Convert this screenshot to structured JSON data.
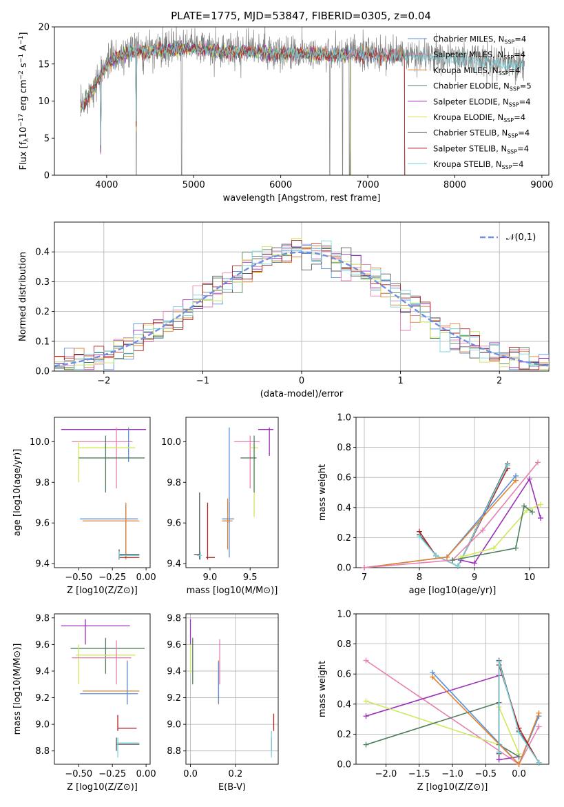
{
  "colors": {
    "chabrier_miles": "#5b8fd9",
    "salpeter_miles": "#e77fb0",
    "kroupa_miles": "#e1822f",
    "chabrier_elodie": "#4f7f5f",
    "salpeter_elodie": "#9b30b8",
    "kroupa_elodie": "#cfe85a",
    "chabrier_stelib": "#555555",
    "salpeter_stelib": "#b22222",
    "kroupa_stelib": "#79d5de",
    "normal": "#6f8fe0",
    "grid": "#b0b0b0"
  },
  "chart_data": [
    {
      "id": "spectrum",
      "type": "line",
      "title": "PLATE=1775, MJD=53847, FIBERID=0305, z=0.04",
      "xlabel": "wavelength [Angstrom, rest frame]",
      "ylabel": "Flux [f_λ10^-17 erg cm^-2 s^-1 A^-1]",
      "ylabel_parts": {
        "a": "Flux [",
        "b": "f",
        "c": "λ",
        "d": "10",
        "e": "−17",
        "f": " erg cm",
        "g": "−2",
        "h": " s",
        "i": "−1",
        "j": " A",
        "k": "−1",
        "l": "]"
      },
      "xlim": [
        3400,
        9080
      ],
      "ylim": [
        0,
        20
      ],
      "xticks": [
        4000,
        5000,
        6000,
        7000,
        8000,
        9000
      ],
      "yticks": [
        0,
        5,
        10,
        15,
        20
      ],
      "grid": false,
      "legend_position": "right",
      "legend": [
        {
          "name": "Chabrier MILES",
          "nssp": "4",
          "color_key": "chabrier_miles"
        },
        {
          "name": "Salpeter MILES",
          "nssp": "4",
          "color_key": "salpeter_miles"
        },
        {
          "name": "Kroupa MILES",
          "nssp": "4",
          "color_key": "kroupa_miles"
        },
        {
          "name": "Chabrier ELODIE",
          "nssp": "5",
          "color_key": "chabrier_elodie"
        },
        {
          "name": "Salpeter ELODIE",
          "nssp": "4",
          "color_key": "salpeter_elodie"
        },
        {
          "name": "Kroupa ELODIE",
          "nssp": "4",
          "color_key": "kroupa_elodie"
        },
        {
          "name": "Chabrier STELIB",
          "nssp": "4",
          "color_key": "chabrier_stelib"
        },
        {
          "name": "Salpeter STELIB",
          "nssp": "4",
          "color_key": "salpeter_stelib"
        },
        {
          "name": "Kroupa STELIB",
          "nssp": "4",
          "color_key": "kroupa_stelib"
        }
      ],
      "legend_label": {
        "prefix": ", N",
        "sub": "SSP",
        "eq": "="
      },
      "data_envelope": {
        "x": [
          3700,
          3800,
          3900,
          4000,
          4100,
          4200,
          4300,
          4400,
          4500,
          4700,
          5000,
          5200,
          5400,
          5600,
          5800,
          6000,
          6200,
          6400,
          6600,
          6800,
          7000,
          7200,
          7400,
          7600,
          7800,
          8000,
          8200,
          8400,
          8600,
          8800
        ],
        "y": [
          9,
          11,
          13,
          15,
          16,
          16.5,
          16.8,
          17,
          16.8,
          17.2,
          17.3,
          17.0,
          16.8,
          17.0,
          16.7,
          16.5,
          16.6,
          16.5,
          16.3,
          16.5,
          16.4,
          16.3,
          16.2,
          16.1,
          16.0,
          15.8,
          15.6,
          15.4,
          15.2,
          15.0
        ]
      },
      "model_cutoffs": {
        "stelib": 7420,
        "elodie": 6800,
        "miles": 7420
      }
    },
    {
      "id": "residuals",
      "type": "step",
      "xlabel": "(data-model)/error",
      "ylabel": "Normed distribution",
      "xlim": [
        -2.5,
        2.5
      ],
      "ylim": [
        0,
        0.5
      ],
      "xticks": [
        -2,
        -1,
        0,
        1,
        2
      ],
      "yticks": [
        0.0,
        0.1,
        0.2,
        0.3,
        0.4
      ],
      "grid": true,
      "legend_position": "top-right",
      "legend": [
        {
          "name": "𝒩(0,1)",
          "color_key": "normal"
        }
      ],
      "bin_width": 0.1
    },
    {
      "id": "age_vs_Z",
      "type": "errorbar",
      "xlabel": "Z [log10(Z/Z⊙)]",
      "ylabel": "age  [log10(age/yr)]",
      "xlim": [
        -0.68,
        0.03
      ],
      "ylim": [
        9.38,
        10.12
      ],
      "xticks": [
        -0.5,
        -0.25,
        0.0
      ],
      "yticks": [
        9.4,
        9.6,
        9.8,
        10.0
      ],
      "grid": false,
      "points": [
        {
          "k": "salpeter_elodie",
          "x": 0.06,
          "y": 10.06,
          "xe": [
            -0.63,
            0.0
          ],
          "ye": [
            9.79,
            10.07
          ]
        },
        {
          "k": "salpeter_miles",
          "x": -0.22,
          "y": 10.0,
          "xe": [
            -0.55,
            -0.1
          ],
          "ye": [
            9.77,
            10.07
          ]
        },
        {
          "k": "chabrier_miles",
          "x": -0.13,
          "y": 10.06,
          "xe": [
            -0.13,
            -0.13
          ],
          "ye": [
            9.9,
            10.07
          ]
        },
        {
          "k": "kroupa_elodie",
          "x": -0.5,
          "y": 9.97,
          "xe": [
            -0.5,
            -0.08
          ],
          "ye": [
            9.8,
            10.0
          ]
        },
        {
          "k": "chabrier_elodie",
          "x": -0.3,
          "y": 9.92,
          "xe": [
            -0.5,
            -0.01
          ],
          "ye": [
            9.75,
            10.03
          ]
        },
        {
          "k": "chabrier_miles",
          "x": -0.15,
          "y": 9.62,
          "xe": [
            -0.49,
            -0.06
          ],
          "ye": [
            9.43,
            9.69
          ]
        },
        {
          "k": "kroupa_miles",
          "x": -0.15,
          "y": 9.61,
          "xe": [
            -0.47,
            -0.05
          ],
          "ye": [
            9.42,
            9.7
          ]
        },
        {
          "k": "chabrier_stelib",
          "x": -0.2,
          "y": 9.445,
          "xe": [
            -0.2,
            -0.05
          ],
          "ye": [
            9.42,
            9.47
          ]
        },
        {
          "k": "salpeter_stelib",
          "x": -0.2,
          "y": 9.43,
          "xe": [
            -0.2,
            -0.05
          ],
          "ye": [
            9.42,
            9.44
          ]
        },
        {
          "k": "kroupa_stelib",
          "x": -0.2,
          "y": 9.44,
          "xe": [
            -0.2,
            -0.05
          ],
          "ye": [
            9.42,
            9.46
          ]
        }
      ]
    },
    {
      "id": "age_vs_mass",
      "type": "errorbar",
      "xlabel": "mass [log10(M/M⊙)]",
      "ylabel": "",
      "xlim": [
        8.7,
        9.85
      ],
      "ylim": [
        9.38,
        10.12
      ],
      "xticks": [
        9.0,
        9.5
      ],
      "yticks": [
        9.4,
        9.6,
        9.8,
        10.0
      ],
      "grid": false,
      "points": [
        {
          "k": "salpeter_elodie",
          "x": 9.74,
          "y": 10.06,
          "xe": [
            9.6,
            9.79
          ],
          "ye": [
            9.93,
            10.07
          ]
        },
        {
          "k": "salpeter_miles",
          "x": 9.5,
          "y": 10.0,
          "xe": [
            9.3,
            9.62
          ],
          "ye": [
            9.77,
            10.03
          ]
        },
        {
          "k": "chabrier_miles",
          "x": 9.24,
          "y": 10.06,
          "xe": [
            9.24,
            9.24
          ],
          "ye": [
            9.6,
            10.07
          ]
        },
        {
          "k": "kroupa_elodie",
          "x": 9.55,
          "y": 9.97,
          "xe": [
            9.5,
            9.6
          ],
          "ye": [
            9.63,
            10.0
          ]
        },
        {
          "k": "chabrier_elodie",
          "x": 9.55,
          "y": 9.92,
          "xe": [
            9.38,
            9.58
          ],
          "ye": [
            9.75,
            10.03
          ]
        },
        {
          "k": "chabrier_miles",
          "x": 9.24,
          "y": 9.62,
          "xe": [
            9.15,
            9.3
          ],
          "ye": [
            9.43,
            9.7
          ]
        },
        {
          "k": "kroupa_miles",
          "x": 9.22,
          "y": 9.61,
          "xe": [
            9.15,
            9.28
          ],
          "ye": [
            9.47,
            9.72
          ]
        },
        {
          "k": "chabrier_stelib",
          "x": 8.87,
          "y": 9.445,
          "xe": [
            8.8,
            8.88
          ],
          "ye": [
            9.42,
            9.75
          ]
        },
        {
          "k": "salpeter_stelib",
          "x": 8.97,
          "y": 9.43,
          "xe": [
            8.95,
            9.06
          ],
          "ye": [
            9.42,
            9.7
          ]
        },
        {
          "k": "kroupa_stelib",
          "x": 8.88,
          "y": 9.44,
          "xe": [
            8.84,
            8.9
          ],
          "ye": [
            9.42,
            9.46
          ]
        }
      ]
    },
    {
      "id": "mass_weight_vs_age",
      "type": "line",
      "xlabel": "age  [log10(age/yr)]",
      "ylabel": "mass weight",
      "xlim": [
        6.85,
        10.35
      ],
      "ylim": [
        0,
        1
      ],
      "xticks": [
        7,
        8,
        9,
        10
      ],
      "yticks": [
        0.0,
        0.2,
        0.4,
        0.6,
        0.8,
        1.0
      ],
      "grid": true,
      "series": [
        {
          "k": "chabrier_stelib",
          "x": [
            8.0,
            8.3,
            8.7,
            9.6
          ],
          "y": [
            0.22,
            0.08,
            0.01,
            0.69
          ]
        },
        {
          "k": "salpeter_stelib",
          "x": [
            8.0,
            8.3,
            8.7,
            9.6
          ],
          "y": [
            0.24,
            0.08,
            0.01,
            0.66
          ]
        },
        {
          "k": "kroupa_stelib",
          "x": [
            8.0,
            8.3,
            8.7,
            9.6
          ],
          "y": [
            0.21,
            0.08,
            0.01,
            0.68
          ]
        },
        {
          "k": "chabrier_miles",
          "x": [
            7.0,
            8.5,
            9.75
          ],
          "y": [
            0.0,
            0.07,
            0.61
          ]
        },
        {
          "k": "kroupa_miles",
          "x": [
            7.0,
            8.5,
            9.75
          ],
          "y": [
            0.0,
            0.07,
            0.58
          ]
        },
        {
          "k": "salpeter_miles",
          "x": [
            7.0,
            8.6,
            9.15,
            10.15
          ],
          "y": [
            0.0,
            0.05,
            0.25,
            0.7
          ]
        },
        {
          "k": "salpeter_elodie",
          "x": [
            8.75,
            9.0,
            10.0,
            10.2
          ],
          "y": [
            0.05,
            0.03,
            0.59,
            0.33
          ]
        },
        {
          "k": "kroupa_elodie",
          "x": [
            8.75,
            9.35,
            9.95,
            10.2
          ],
          "y": [
            0.07,
            0.13,
            0.38,
            0.42
          ]
        },
        {
          "k": "chabrier_elodie",
          "x": [
            8.6,
            9.75,
            9.9,
            10.05
          ],
          "y": [
            0.05,
            0.13,
            0.41,
            0.37
          ]
        }
      ]
    },
    {
      "id": "mass_vs_Z",
      "type": "errorbar",
      "xlabel": "Z [log10(Z/Z⊙)]",
      "ylabel": "mass [log10(M/M⊙)]",
      "xlim": [
        -0.68,
        0.03
      ],
      "ylim": [
        8.7,
        9.83
      ],
      "xticks": [
        -0.5,
        -0.25,
        0.0
      ],
      "yticks": [
        8.8,
        9.0,
        9.2,
        9.4,
        9.6,
        9.8
      ],
      "grid": false,
      "points": [
        {
          "k": "salpeter_elodie",
          "x": -0.45,
          "y": 9.74,
          "xe": [
            -0.63,
            -0.12
          ],
          "ye": [
            9.6,
            9.79
          ]
        },
        {
          "k": "chabrier_elodie",
          "x": -0.3,
          "y": 9.57,
          "xe": [
            -0.56,
            -0.01
          ],
          "ye": [
            9.38,
            9.65
          ]
        },
        {
          "k": "kroupa_elodie",
          "x": -0.5,
          "y": 9.52,
          "xe": [
            -0.52,
            -0.08
          ],
          "ye": [
            9.3,
            9.6
          ]
        },
        {
          "k": "salpeter_miles",
          "x": -0.22,
          "y": 9.5,
          "xe": [
            -0.55,
            -0.11
          ],
          "ye": [
            9.3,
            9.63
          ]
        },
        {
          "k": "kroupa_miles",
          "x": -0.14,
          "y": 9.25,
          "xe": [
            -0.47,
            -0.05
          ],
          "ye": [
            9.15,
            9.48
          ]
        },
        {
          "k": "chabrier_miles",
          "x": -0.14,
          "y": 9.23,
          "xe": [
            -0.49,
            -0.06
          ],
          "ye": [
            9.15,
            9.47
          ]
        },
        {
          "k": "salpeter_stelib",
          "x": -0.21,
          "y": 8.97,
          "xe": [
            -0.21,
            -0.07
          ],
          "ye": [
            8.95,
            9.07
          ]
        },
        {
          "k": "chabrier_stelib",
          "x": -0.22,
          "y": 8.85,
          "xe": [
            -0.22,
            -0.05
          ],
          "ye": [
            8.8,
            8.9
          ]
        },
        {
          "k": "kroupa_stelib",
          "x": -0.21,
          "y": 8.86,
          "xe": [
            -0.21,
            -0.05
          ],
          "ye": [
            8.75,
            8.9
          ]
        }
      ]
    },
    {
      "id": "mass_vs_ebv",
      "type": "errorbar",
      "xlabel": "E(B-V)",
      "ylabel": "",
      "xlim": [
        -0.02,
        0.39
      ],
      "ylim": [
        8.7,
        9.83
      ],
      "xticks": [
        0.0,
        0.2
      ],
      "yticks": [
        8.8,
        9.0,
        9.2,
        9.4,
        9.6,
        9.8
      ],
      "grid": true,
      "points": [
        {
          "k": "salpeter_elodie",
          "x": 0.0,
          "y": 9.74,
          "xe": [
            0.0,
            0.0
          ],
          "ye": [
            9.6,
            9.79
          ]
        },
        {
          "k": "chabrier_elodie",
          "x": 0.01,
          "y": 9.57,
          "xe": [
            0.01,
            0.01
          ],
          "ye": [
            9.3,
            9.65
          ]
        },
        {
          "k": "kroupa_elodie",
          "x": 0.0,
          "y": 9.52,
          "xe": [
            0.0,
            0.0
          ],
          "ye": [
            9.38,
            9.6
          ]
        },
        {
          "k": "salpeter_miles",
          "x": 0.13,
          "y": 9.5,
          "xe": [
            0.13,
            0.13
          ],
          "ye": [
            9.3,
            9.64
          ]
        },
        {
          "k": "kroupa_miles",
          "x": 0.125,
          "y": 9.25,
          "xe": [
            0.125,
            0.125
          ],
          "ye": [
            9.15,
            9.48
          ]
        },
        {
          "k": "chabrier_miles",
          "x": 0.125,
          "y": 9.23,
          "xe": [
            0.125,
            0.125
          ],
          "ye": [
            9.16,
            9.47
          ]
        },
        {
          "k": "salpeter_stelib",
          "x": 0.37,
          "y": 8.97,
          "xe": [
            0.37,
            0.37
          ],
          "ye": [
            8.95,
            9.08
          ]
        },
        {
          "k": "chabrier_stelib",
          "x": 0.36,
          "y": 8.85,
          "xe": [
            0.36,
            0.36
          ],
          "ye": [
            8.8,
            8.9
          ]
        },
        {
          "k": "kroupa_stelib",
          "x": 0.36,
          "y": 8.86,
          "xe": [
            0.36,
            0.36
          ],
          "ye": [
            8.75,
            8.95
          ]
        }
      ]
    },
    {
      "id": "mass_weight_vs_Z",
      "type": "line",
      "xlabel": "Z [log10(Z/Z⊙)]",
      "ylabel": "mass weight",
      "xlim": [
        -2.45,
        0.45
      ],
      "ylim": [
        0,
        1
      ],
      "xticks": [
        -2.0,
        -1.5,
        -1.0,
        -0.5,
        0.0
      ],
      "yticks": [
        0.0,
        0.2,
        0.4,
        0.6,
        0.8,
        1.0
      ],
      "grid": true,
      "series": [
        {
          "k": "salpeter_miles",
          "x": [
            -2.3,
            0.0,
            0.3
          ],
          "y": [
            0.69,
            0.0,
            0.25
          ]
        },
        {
          "k": "salpeter_elodie",
          "x": [
            -2.3,
            -0.3,
            -0.3,
            0.0
          ],
          "y": [
            0.32,
            0.59,
            0.03,
            0.05
          ]
        },
        {
          "k": "kroupa_elodie",
          "x": [
            -2.3,
            -0.3,
            -0.3,
            0.0
          ],
          "y": [
            0.42,
            0.13,
            0.38,
            0.07
          ]
        },
        {
          "k": "chabrier_elodie",
          "x": [
            -2.3,
            -0.3,
            -0.3,
            0.0
          ],
          "y": [
            0.13,
            0.41,
            0.13,
            0.05
          ]
        },
        {
          "k": "chabrier_miles",
          "x": [
            -1.3,
            0.0,
            0.3
          ],
          "y": [
            0.61,
            0.0,
            0.32
          ]
        },
        {
          "k": "kroupa_miles",
          "x": [
            -1.3,
            0.0,
            0.3
          ],
          "y": [
            0.58,
            0.0,
            0.34
          ]
        },
        {
          "k": "chabrier_stelib",
          "x": [
            -0.3,
            -0.3,
            0.0,
            0.3
          ],
          "y": [
            0.07,
            0.69,
            0.22,
            0.01
          ]
        },
        {
          "k": "salpeter_stelib",
          "x": [
            -0.3,
            -0.3,
            0.0,
            0.3
          ],
          "y": [
            0.08,
            0.66,
            0.24,
            0.01
          ]
        },
        {
          "k": "kroupa_stelib",
          "x": [
            -0.3,
            -0.3,
            0.0,
            0.3
          ],
          "y": [
            0.08,
            0.68,
            0.21,
            0.01
          ]
        }
      ]
    }
  ]
}
